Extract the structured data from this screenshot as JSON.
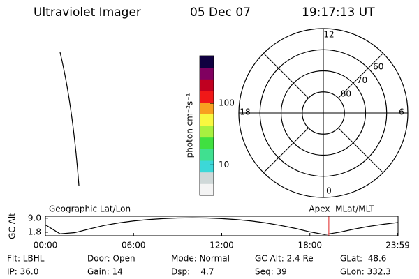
{
  "header": {
    "instrument": "Ultraviolet Imager",
    "date": "05 Dec 07",
    "time": "19:17:13 UT"
  },
  "chart_data": [
    {
      "type": "colorbar",
      "label": "photon cm⁻²s⁻¹",
      "log_scale": true,
      "ylim": [
        3.2,
        590
      ],
      "yticks": [
        10,
        100
      ],
      "colors": [
        "#f4f4f4",
        "#cfd8d8",
        "#3cd8d8",
        "#40e090",
        "#40e040",
        "#a8f040",
        "#f8f840",
        "#f8a020",
        "#f01818",
        "#c00020",
        "#800060",
        "#100040"
      ]
    },
    {
      "type": "polar",
      "rlim": [
        90,
        50
      ],
      "rticks": [
        80,
        70,
        60
      ],
      "hours": [
        12,
        18,
        0,
        6
      ],
      "color": "#000000"
    },
    {
      "type": "line",
      "title_left": "Geographic Lat/Lon",
      "title_right": "Apex  MLat/MLT",
      "ylabel": "GC Alt",
      "xlim": [
        0,
        24
      ],
      "ylim": [
        0,
        10
      ],
      "xticks": [
        {
          "value": 0,
          "label": "00:00"
        },
        {
          "value": 6,
          "label": "06:00"
        },
        {
          "value": 12,
          "label": "12:00"
        },
        {
          "value": 18,
          "label": "18:00"
        },
        {
          "value": 23.98,
          "label": "23:59"
        }
      ],
      "yticks": [
        1.8,
        {
          "value": 9,
          "label": "9.0"
        }
      ],
      "x": [
        0,
        1,
        2,
        3,
        4,
        5,
        6,
        7,
        8,
        9,
        10,
        11,
        12,
        13,
        14,
        15,
        16,
        17,
        18,
        19,
        20,
        21,
        22,
        23,
        24
      ],
      "values": [
        5.6,
        1.0,
        1.6,
        3.5,
        5.3,
        6.6,
        7.6,
        8.3,
        8.8,
        9.1,
        9.2,
        9.1,
        8.8,
        8.3,
        7.6,
        6.6,
        5.3,
        3.8,
        2.0,
        0.6,
        1.8,
        3.4,
        4.8,
        5.9,
        6.8
      ],
      "color": "#000000",
      "marker_x": 19.29,
      "marker_color": "#e02020"
    }
  ],
  "info": [
    [
      "Flt: LBHL",
      "Door: Open",
      "Mode: Normal",
      "GC Alt: 2.4 Re",
      "GLat:  48.6"
    ],
    [
      "IP: 36.0",
      "Gain: 14",
      "Dsp:    4.7",
      "Seq: 39",
      "GLon: 332.3"
    ]
  ]
}
